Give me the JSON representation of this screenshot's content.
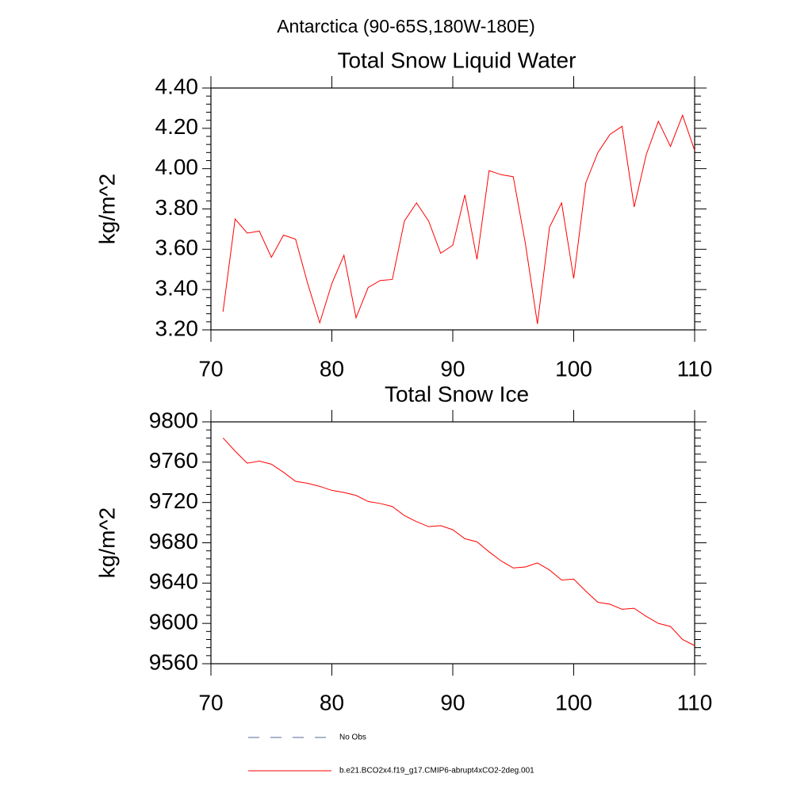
{
  "title": "Antarctica (90-65S,180W-180E)",
  "chart_data": [
    {
      "type": "line",
      "title": "Total Snow Liquid Water",
      "ylabel": "kg/m^2",
      "x": [
        71,
        72,
        73,
        74,
        75,
        76,
        77,
        78,
        79,
        80,
        81,
        82,
        83,
        84,
        85,
        86,
        87,
        88,
        89,
        90,
        91,
        92,
        93,
        94,
        95,
        96,
        97,
        98,
        99,
        100,
        101,
        102,
        103,
        104,
        105,
        106,
        107,
        108,
        109,
        110
      ],
      "series": [
        {
          "color": "#ff0000",
          "values": [
            3.29,
            3.75,
            3.68,
            3.69,
            3.56,
            3.67,
            3.65,
            3.43,
            3.235,
            3.43,
            3.57,
            3.26,
            3.41,
            3.445,
            3.45,
            3.74,
            3.83,
            3.74,
            3.58,
            3.62,
            3.87,
            3.55,
            3.99,
            3.97,
            3.96,
            3.63,
            3.23,
            3.71,
            3.83,
            3.455,
            3.93,
            4.08,
            4.17,
            4.21,
            3.81,
            4.07,
            4.235,
            4.11,
            4.265,
            4.09
          ]
        }
      ],
      "xlim": [
        70,
        110
      ],
      "xticks": [
        70,
        80,
        90,
        100,
        110
      ],
      "ylim": [
        3.2,
        4.4
      ],
      "yticks": [
        {
          "value": 3.2,
          "label": "3.20"
        },
        {
          "value": 3.4,
          "label": "3.40"
        },
        {
          "value": 3.6,
          "label": "3.60"
        },
        {
          "value": 3.8,
          "label": "3.80"
        },
        {
          "value": 4.0,
          "label": "4.00"
        },
        {
          "value": 4.2,
          "label": "4.20"
        },
        {
          "value": 4.4,
          "label": "4.40"
        }
      ],
      "minor_per_major": 5
    },
    {
      "type": "line",
      "title": "Total Snow Ice",
      "ylabel": "kg/m^2",
      "x": [
        71,
        72,
        73,
        74,
        75,
        76,
        77,
        78,
        79,
        80,
        81,
        82,
        83,
        84,
        85,
        86,
        87,
        88,
        89,
        90,
        91,
        92,
        93,
        94,
        95,
        96,
        97,
        98,
        99,
        100,
        101,
        102,
        103,
        104,
        105,
        106,
        107,
        108,
        109,
        110
      ],
      "series": [
        {
          "color": "#ff0000",
          "values": [
            9784,
            9771,
            9759,
            9761,
            9758,
            9750,
            9741,
            9739,
            9736,
            9732,
            9730,
            9727,
            9721,
            9719,
            9716,
            9707,
            9701,
            9696,
            9697,
            9693,
            9684,
            9681,
            9671,
            9662,
            9655,
            9656,
            9660,
            9653,
            9643,
            9644,
            9632,
            9621,
            9619,
            9614,
            9615,
            9607,
            9600,
            9597,
            9584,
            9578
          ]
        }
      ],
      "xlim": [
        70,
        110
      ],
      "xticks": [
        70,
        80,
        90,
        100,
        110
      ],
      "ylim": [
        9560,
        9800
      ],
      "yticks": [
        9560,
        9600,
        9640,
        9680,
        9720,
        9760,
        9800
      ],
      "minor_per_major": 5
    }
  ],
  "legend": [
    {
      "name": "No Obs",
      "color": "#5a6a9a",
      "dash": true
    },
    {
      "name": "b.e21.BCO2x4.f19_g17.CMIP6-abrupt4xCO2-2deg.001",
      "color": "#ff0000",
      "dash": false
    }
  ]
}
